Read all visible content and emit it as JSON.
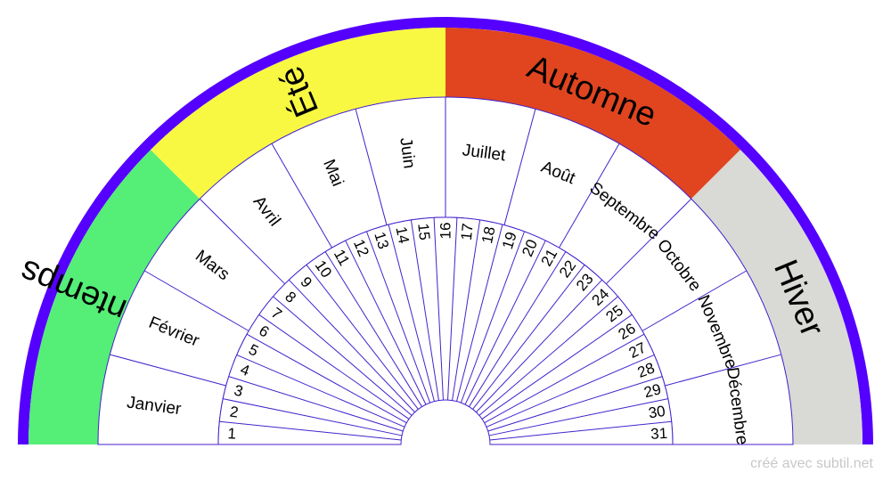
{
  "colors": {
    "border": "#5500ff",
    "printemps": "#55ee77",
    "ete": "#f8f843",
    "automne": "#e04520",
    "hiver": "#d9d9d6",
    "line": "#4422cc",
    "background": "#ffffff"
  },
  "seasons": [
    {
      "label": "Printemps",
      "color": "#55ee77"
    },
    {
      "label": "Été",
      "color": "#f8f843"
    },
    {
      "label": "Automne",
      "color": "#e04520"
    },
    {
      "label": "Hiver",
      "color": "#d9d9d6"
    }
  ],
  "months": [
    "Janvier",
    "Février",
    "Mars",
    "Avril",
    "Mai",
    "Juin",
    "Juillet",
    "Août",
    "Septembre",
    "Octobre",
    "Novembre",
    "Décembre"
  ],
  "days": [
    "1",
    "2",
    "3",
    "4",
    "5",
    "6",
    "7",
    "8",
    "9",
    "10",
    "11",
    "12",
    "13",
    "14",
    "15",
    "16",
    "17",
    "18",
    "19",
    "20",
    "21",
    "22",
    "23",
    "24",
    "25",
    "26",
    "27",
    "28",
    "29",
    "30",
    "31"
  ],
  "credit": "créé avec subtil.net"
}
